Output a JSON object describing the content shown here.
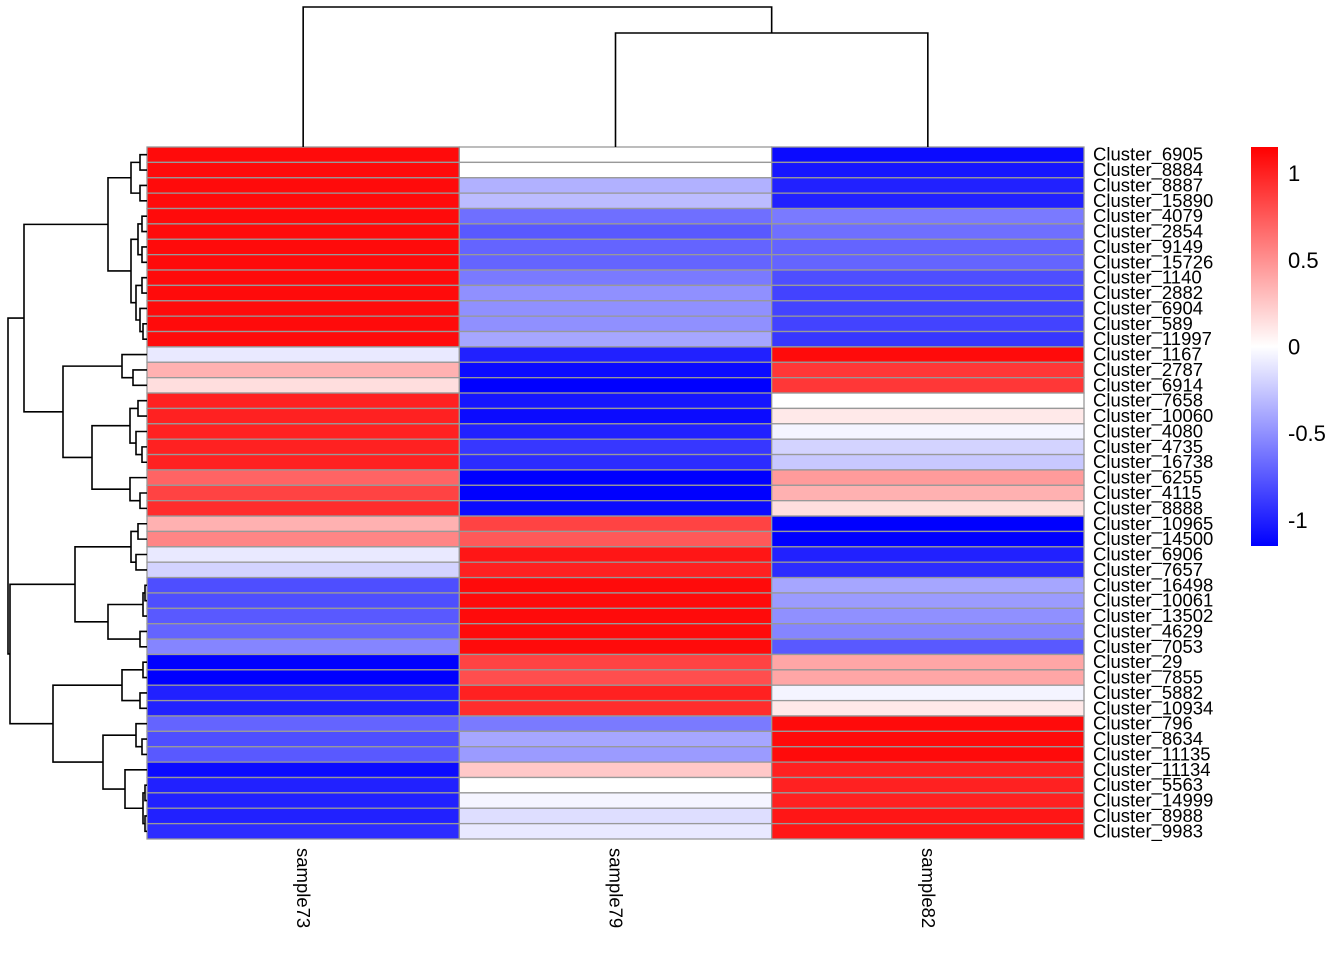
{
  "chart_data": {
    "type": "heatmap",
    "title": "",
    "columns": [
      "sample73",
      "sample79",
      "sample82"
    ],
    "rows": [
      "Cluster_6905",
      "Cluster_8884",
      "Cluster_8887",
      "Cluster_15890",
      "Cluster_4079",
      "Cluster_2854",
      "Cluster_9149",
      "Cluster_15726",
      "Cluster_1140",
      "Cluster_2882",
      "Cluster_6904",
      "Cluster_589",
      "Cluster_11997",
      "Cluster_1167",
      "Cluster_2787",
      "Cluster_6914",
      "Cluster_7658",
      "Cluster_10060",
      "Cluster_4080",
      "Cluster_4735",
      "Cluster_16738",
      "Cluster_6255",
      "Cluster_4115",
      "Cluster_8888",
      "Cluster_10965",
      "Cluster_14500",
      "Cluster_6906",
      "Cluster_7657",
      "Cluster_16498",
      "Cluster_10061",
      "Cluster_13502",
      "Cluster_4629",
      "Cluster_7053",
      "Cluster_29",
      "Cluster_7855",
      "Cluster_5882",
      "Cluster_10934",
      "Cluster_796",
      "Cluster_8634",
      "Cluster_11135",
      "Cluster_11134",
      "Cluster_5563",
      "Cluster_14999",
      "Cluster_8988",
      "Cluster_9983"
    ],
    "values": [
      [
        1.1,
        0.0,
        -1.1
      ],
      [
        1.1,
        0.0,
        -1.05
      ],
      [
        1.1,
        -0.35,
        -1.0
      ],
      [
        1.1,
        -0.3,
        -1.0
      ],
      [
        1.1,
        -0.65,
        -0.6
      ],
      [
        1.1,
        -0.75,
        -0.65
      ],
      [
        1.1,
        -0.7,
        -0.7
      ],
      [
        1.1,
        -0.7,
        -0.7
      ],
      [
        1.1,
        -0.6,
        -0.8
      ],
      [
        1.1,
        -0.5,
        -0.85
      ],
      [
        1.1,
        -0.5,
        -0.85
      ],
      [
        1.1,
        -0.5,
        -0.85
      ],
      [
        1.1,
        -0.4,
        -0.9
      ],
      [
        -0.1,
        -1.0,
        1.1
      ],
      [
        0.35,
        -1.1,
        0.9
      ],
      [
        0.15,
        -1.15,
        0.9
      ],
      [
        1.0,
        -1.05,
        0.0
      ],
      [
        1.0,
        -1.1,
        0.1
      ],
      [
        1.0,
        -1.0,
        -0.05
      ],
      [
        1.0,
        -0.9,
        -0.2
      ],
      [
        1.0,
        -0.95,
        -0.25
      ],
      [
        0.7,
        -1.15,
        0.45
      ],
      [
        0.85,
        -1.15,
        0.35
      ],
      [
        0.95,
        -1.1,
        0.15
      ],
      [
        0.35,
        0.85,
        -1.15
      ],
      [
        0.55,
        0.75,
        -1.15
      ],
      [
        -0.1,
        1.05,
        -1.0
      ],
      [
        -0.2,
        1.0,
        -0.95
      ],
      [
        -0.8,
        1.1,
        -0.4
      ],
      [
        -0.8,
        1.1,
        -0.45
      ],
      [
        -0.75,
        1.1,
        -0.5
      ],
      [
        -0.7,
        1.1,
        -0.55
      ],
      [
        -0.55,
        1.1,
        -0.75
      ],
      [
        -1.15,
        0.85,
        0.4
      ],
      [
        -1.15,
        0.8,
        0.4
      ],
      [
        -1.0,
        1.0,
        -0.05
      ],
      [
        -1.0,
        0.95,
        0.1
      ],
      [
        -0.7,
        -0.6,
        1.1
      ],
      [
        -0.8,
        -0.4,
        1.1
      ],
      [
        -0.75,
        -0.45,
        1.1
      ],
      [
        -1.1,
        0.25,
        1.0
      ],
      [
        -1.0,
        0.0,
        1.0
      ],
      [
        -1.0,
        -0.05,
        1.0
      ],
      [
        -1.0,
        -0.15,
        1.05
      ],
      [
        -0.95,
        -0.1,
        1.05
      ]
    ],
    "color_scale": {
      "low": "#0000FF",
      "mid": "#FFFFFF",
      "high": "#FF0000",
      "range": [
        -1.15,
        1.15
      ]
    },
    "legend": {
      "placement": "right",
      "ticks": [
        1,
        0.5,
        0,
        -0.5,
        -1
      ],
      "tick_labels": [
        "1",
        "0.5",
        "0",
        "-0.5",
        "-1"
      ]
    },
    "row_dendrogram": true,
    "column_dendrogram": true
  }
}
